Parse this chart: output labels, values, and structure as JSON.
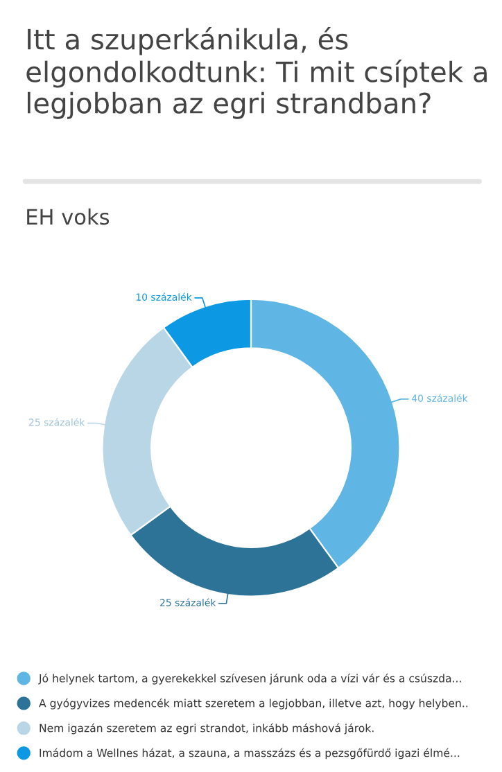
{
  "chart_data": {
    "type": "donut",
    "title": "Itt a szuperkánikula, és elgondolkodtunk: Ti mit csíptek a legjobban az egri strandban?",
    "subtitle": "EH voks",
    "categories": [
      "Jó helynek tartom, a gyerekekkel szívesen járunk oda a vízi vár és a csúszda...",
      "A gyógyvizes medencék miatt szeretem a legjobban, illetve azt, hogy helyben..",
      "Nem igazán szeretem az egri strandot, inkább máshová járok.",
      "Imádom a Wellnes házat, a szauna, a masszázs és a pezsgőfürdő igazi élmé..."
    ],
    "values": [
      40,
      25,
      25,
      10
    ],
    "colors": [
      "#5fb5e3",
      "#2d7398",
      "#b9d6e7",
      "#0d98e3"
    ],
    "value_labels": [
      "40 százalék",
      "25 százalék",
      "25 százalék",
      "10 százalék"
    ],
    "legend": "bottom"
  }
}
